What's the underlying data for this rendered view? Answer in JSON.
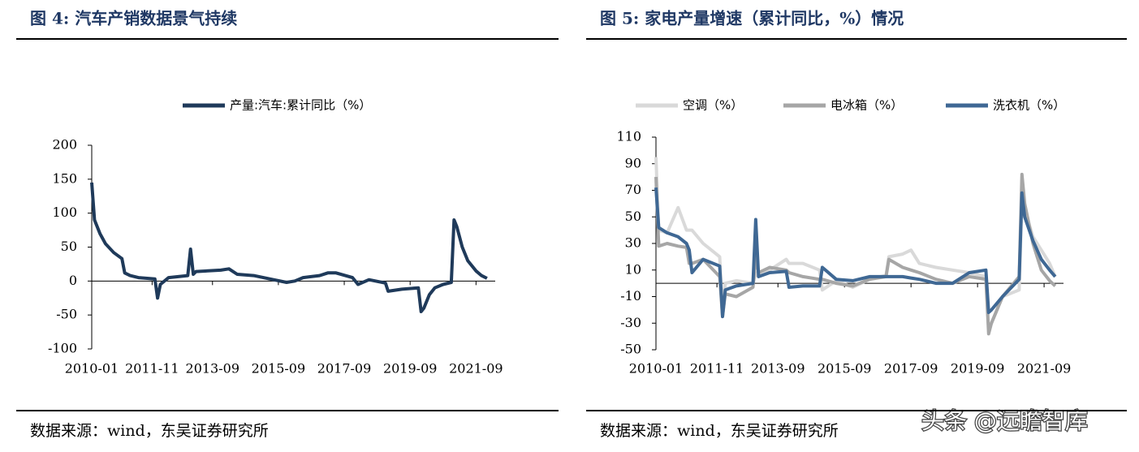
{
  "chart_data": [
    {
      "type": "line",
      "title": "图 4: 汽车产销数据景气持续",
      "source": "数据来源：wind，东吴证券研究所",
      "x": [
        "2010-01",
        "2010-02",
        "2010-04",
        "2010-06",
        "2010-09",
        "2010-12",
        "2011-01",
        "2011-03",
        "2011-06",
        "2011-12",
        "2012-01",
        "2012-02",
        "2012-05",
        "2012-12",
        "2013-01",
        "2013-02",
        "2013-03",
        "2013-12",
        "2014-03",
        "2014-06",
        "2014-12",
        "2015-06",
        "2015-12",
        "2016-03",
        "2016-06",
        "2016-12",
        "2017-03",
        "2017-06",
        "2017-12",
        "2018-02",
        "2018-06",
        "2018-12",
        "2019-01",
        "2019-06",
        "2019-12",
        "2020-01",
        "2020-02",
        "2020-04",
        "2020-06",
        "2020-09",
        "2020-12",
        "2021-01",
        "2021-02",
        "2021-04",
        "2021-06",
        "2021-09",
        "2021-11",
        "2022-01"
      ],
      "series": [
        {
          "name": "产量:汽车:累计同比（%）",
          "color": "#1f3a5a",
          "values": [
            145,
            90,
            70,
            55,
            42,
            33,
            12,
            8,
            5,
            3,
            -25,
            -5,
            5,
            8,
            47,
            10,
            14,
            16,
            18,
            10,
            8,
            3,
            -2,
            0,
            5,
            8,
            12,
            12,
            5,
            -5,
            2,
            -3,
            -15,
            -12,
            -10,
            -45,
            -40,
            -20,
            -10,
            -5,
            -2,
            90,
            80,
            50,
            30,
            15,
            8,
            4
          ]
        }
      ],
      "xlim": [
        "2010-01",
        "2022-04"
      ],
      "xticks": [
        "2010-01",
        "2011-11",
        "2013-09",
        "2015-09",
        "2017-09",
        "2019-09",
        "2021-09"
      ],
      "ylim": [
        -100,
        200
      ],
      "yticks": [
        -100,
        -50,
        0,
        50,
        100,
        150,
        200
      ],
      "legend": "top"
    },
    {
      "type": "line",
      "title": "图 5: 家电产量增速（累计同比，%）情况",
      "source": "数据来源：wind，东吴证券研究所",
      "x": [
        "2010-01",
        "2010-02",
        "2010-05",
        "2010-09",
        "2010-12",
        "2011-01",
        "2011-02",
        "2011-06",
        "2011-12",
        "2012-01",
        "2012-02",
        "2012-06",
        "2012-12",
        "2013-01",
        "2013-02",
        "2013-06",
        "2013-12",
        "2014-01",
        "2014-06",
        "2014-12",
        "2015-01",
        "2015-06",
        "2015-12",
        "2016-06",
        "2016-12",
        "2017-01",
        "2017-06",
        "2017-09",
        "2017-12",
        "2018-06",
        "2018-12",
        "2019-06",
        "2019-12",
        "2020-01",
        "2020-02",
        "2020-06",
        "2020-12",
        "2021-01",
        "2021-02",
        "2021-05",
        "2021-08",
        "2021-11",
        "2022-01"
      ],
      "series": [
        {
          "name": "空调（%）",
          "color": "#d9d9d9",
          "values": [
            95,
            40,
            38,
            57,
            40,
            40,
            40,
            30,
            20,
            -20,
            0,
            2,
            0,
            8,
            5,
            10,
            18,
            15,
            15,
            10,
            -5,
            2,
            -3,
            3,
            6,
            20,
            22,
            25,
            15,
            12,
            10,
            8,
            5,
            -35,
            -30,
            -10,
            -5,
            65,
            55,
            35,
            25,
            15,
            5
          ]
        },
        {
          "name": "电冰箱（%）",
          "color": "#a6a6a6",
          "values": [
            80,
            28,
            30,
            28,
            27,
            15,
            15,
            18,
            5,
            -25,
            -8,
            -10,
            -3,
            20,
            8,
            12,
            10,
            8,
            5,
            3,
            3,
            0,
            -2,
            3,
            5,
            18,
            12,
            10,
            8,
            3,
            0,
            5,
            3,
            -38,
            -30,
            -10,
            5,
            82,
            60,
            30,
            10,
            2,
            -2
          ]
        },
        {
          "name": "洗衣机（%）",
          "color": "#3f6894",
          "values": [
            72,
            42,
            38,
            35,
            30,
            25,
            8,
            18,
            13,
            -25,
            -5,
            -2,
            0,
            48,
            5,
            8,
            9,
            -3,
            -2,
            -2,
            12,
            3,
            2,
            5,
            5,
            5,
            5,
            4,
            3,
            0,
            0,
            8,
            10,
            -22,
            -20,
            -10,
            3,
            68,
            50,
            32,
            18,
            10,
            5
          ]
        }
      ],
      "xlim": [
        "2010-01",
        "2022-04"
      ],
      "xticks": [
        "2010-01",
        "2011-11",
        "2013-09",
        "2015-09",
        "2017-09",
        "2019-09",
        "2021-09"
      ],
      "ylim": [
        -50,
        110
      ],
      "yticks": [
        -50,
        -30,
        -10,
        10,
        30,
        50,
        70,
        90,
        110
      ],
      "legend": "top"
    }
  ],
  "watermark": "头条 @远瞻智库"
}
